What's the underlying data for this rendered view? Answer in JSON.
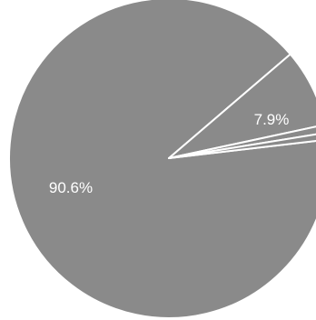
{
  "chart_data": {
    "type": "pie",
    "slices": [
      {
        "label": "90.6%",
        "value": 90.6,
        "color": "#8a8a8a"
      },
      {
        "label": "7.9%",
        "value": 7.9,
        "color": "#8a8a8a"
      },
      {
        "label": "",
        "value": 0.8,
        "color": "#8a8a8a"
      },
      {
        "label": "",
        "value": 0.7,
        "color": "#8a8a8a"
      }
    ],
    "background": "#ffffff"
  }
}
